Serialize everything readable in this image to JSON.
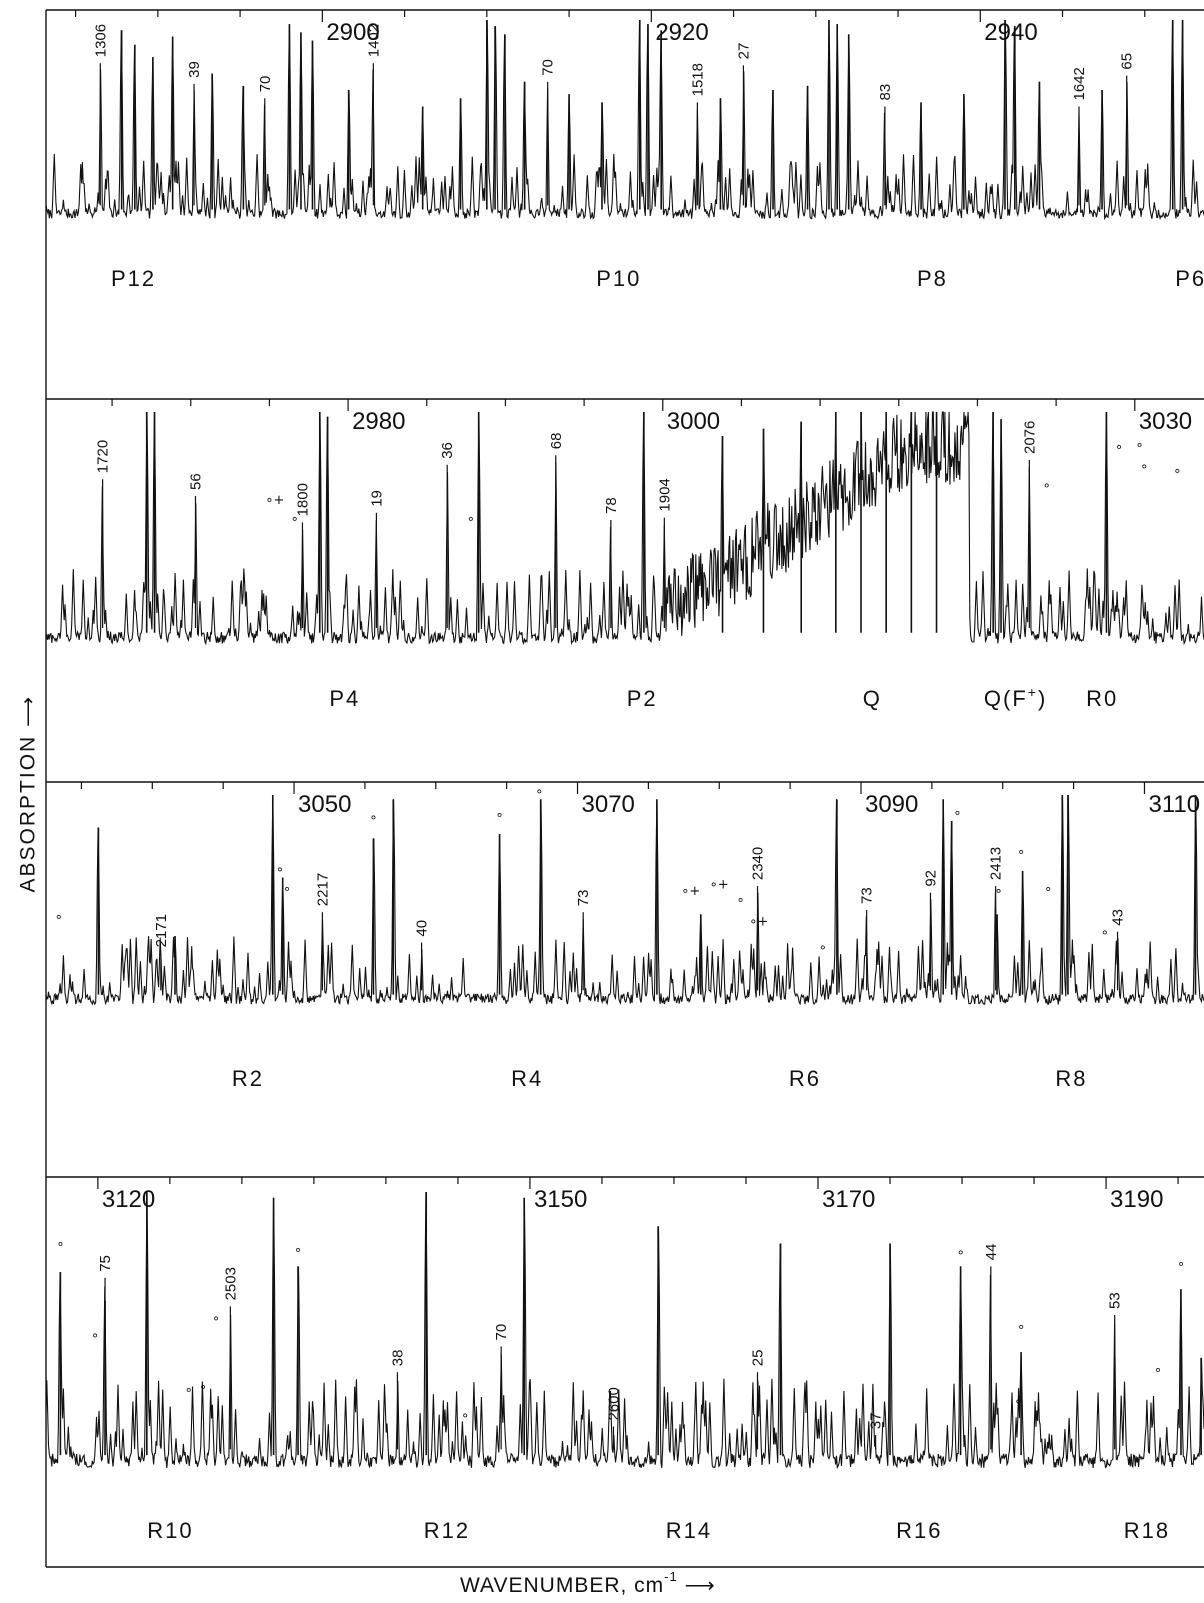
{
  "axes": {
    "ylabel": "ABSORPTION ⟶",
    "xlabel": "WAVENUMBER, cm",
    "xlabel_superscript": "-1",
    "xlabel_arrow": "⟶"
  },
  "chart_data": [
    {
      "type": "line",
      "panel": 1,
      "title": "",
      "xlabel": "",
      "ylabel": "",
      "xlim": [
        2883.2,
        2953.6
      ],
      "major_ticks": [
        2900,
        2920,
        2940
      ],
      "branch_labels": [
        {
          "text": "P12",
          "x": 2888
        },
        {
          "text": "P10",
          "x": 2917.5
        },
        {
          "text": "P8",
          "x": 2937
        },
        {
          "text": "P6",
          "x": 2952.7
        }
      ],
      "peak_annotations": [
        {
          "text": "1306",
          "x": 2886.5,
          "y": 0.79
        },
        {
          "text": "39",
          "x": 2892.2,
          "y": 0.69
        },
        {
          "text": "70",
          "x": 2896.5,
          "y": 0.62
        },
        {
          "text": "1402",
          "x": 2903.1,
          "y": 0.79
        },
        {
          "text": "70",
          "x": 2913.7,
          "y": 0.7
        },
        {
          "text": "1518",
          "x": 2922.8,
          "y": 0.6
        },
        {
          "text": "27",
          "x": 2925.6,
          "y": 0.78
        },
        {
          "text": "83",
          "x": 2934.2,
          "y": 0.58
        },
        {
          "text": "1642",
          "x": 2946.0,
          "y": 0.58
        },
        {
          "text": "65",
          "x": 2948.9,
          "y": 0.73
        }
      ],
      "strong_lines": [
        {
          "x": 2887.8,
          "y": 0.95
        },
        {
          "x": 2888.6,
          "y": 0.88
        },
        {
          "x": 2889.7,
          "y": 0.82
        },
        {
          "x": 2890.9,
          "y": 0.92
        },
        {
          "x": 2893.3,
          "y": 0.74
        },
        {
          "x": 2895.2,
          "y": 0.68
        },
        {
          "x": 2898.0,
          "y": 0.98
        },
        {
          "x": 2898.7,
          "y": 0.94
        },
        {
          "x": 2899.4,
          "y": 0.9
        },
        {
          "x": 2901.6,
          "y": 0.66
        },
        {
          "x": 2906.1,
          "y": 0.58
        },
        {
          "x": 2908.4,
          "y": 0.62
        },
        {
          "x": 2910.0,
          "y": 1.0
        },
        {
          "x": 2910.5,
          "y": 0.97
        },
        {
          "x": 2911.1,
          "y": 0.93
        },
        {
          "x": 2912.3,
          "y": 0.7
        },
        {
          "x": 2915.0,
          "y": 0.64
        },
        {
          "x": 2917.0,
          "y": 0.6
        },
        {
          "x": 2919.3,
          "y": 1.0
        },
        {
          "x": 2919.8,
          "y": 0.98
        },
        {
          "x": 2920.6,
          "y": 0.95
        },
        {
          "x": 2924.2,
          "y": 0.62
        },
        {
          "x": 2927.4,
          "y": 0.66
        },
        {
          "x": 2929.5,
          "y": 0.68
        },
        {
          "x": 2930.8,
          "y": 1.0
        },
        {
          "x": 2931.3,
          "y": 0.98
        },
        {
          "x": 2932.0,
          "y": 0.93
        },
        {
          "x": 2936.4,
          "y": 0.6
        },
        {
          "x": 2939.0,
          "y": 0.64
        },
        {
          "x": 2941.5,
          "y": 1.0
        },
        {
          "x": 2942.1,
          "y": 0.97
        },
        {
          "x": 2943.6,
          "y": 0.7
        },
        {
          "x": 2947.4,
          "y": 0.66
        },
        {
          "x": 2951.7,
          "y": 1.0
        },
        {
          "x": 2952.3,
          "y": 1.0
        }
      ]
    },
    {
      "type": "line",
      "panel": 2,
      "title": "",
      "xlabel": "",
      "ylabel": "",
      "xlim": [
        2960.8,
        3034.4
      ],
      "major_ticks": [
        2980,
        3000,
        3030
      ],
      "branch_labels": [
        {
          "text": "P4",
          "x": 2979.7
        },
        {
          "text": "P2",
          "x": 2998.6
        },
        {
          "text": "Q",
          "x": 3013.6
        },
        {
          "text": "Q(F",
          "x": 3021.3,
          "superscript": "+",
          "suffix": ")"
        },
        {
          "text": "R0",
          "x": 3027.8
        }
      ],
      "peak_annotations": [
        {
          "text": "1720",
          "x": 2964.4,
          "y": 0.72
        },
        {
          "text": "56",
          "x": 2970.3,
          "y": 0.65
        },
        {
          "text": "1800",
          "x": 2977.1,
          "y": 0.54
        },
        {
          "text": "19",
          "x": 2981.8,
          "y": 0.58
        },
        {
          "text": "36",
          "x": 2986.3,
          "y": 0.78
        },
        {
          "text": "68",
          "x": 2993.2,
          "y": 0.82
        },
        {
          "text": "78",
          "x": 2996.7,
          "y": 0.55
        },
        {
          "text": "1904",
          "x": 3000.1,
          "y": 0.56
        },
        {
          "text": "2076",
          "x": 3023.3,
          "y": 0.8
        }
      ],
      "marker_notes": [
        {
          "text": "∘+",
          "x": 2975.0,
          "y": 0.6
        },
        {
          "text": "∘",
          "x": 2976.6,
          "y": 0.52
        },
        {
          "text": "∘",
          "x": 2987.8,
          "y": 0.52
        },
        {
          "text": "∘",
          "x": 3024.4,
          "y": 0.66
        },
        {
          "text": "∘",
          "x": 3029.0,
          "y": 0.82
        },
        {
          "text": "∘",
          "x": 3030.3,
          "y": 0.83
        },
        {
          "text": "∘",
          "x": 3030.6,
          "y": 0.74
        },
        {
          "text": "∘",
          "x": 3032.7,
          "y": 0.72
        }
      ],
      "strong_lines": [
        {
          "x": 2967.2,
          "y": 1.0
        },
        {
          "x": 2967.7,
          "y": 1.0
        },
        {
          "x": 2978.2,
          "y": 1.0
        },
        {
          "x": 2978.7,
          "y": 0.98
        },
        {
          "x": 2988.3,
          "y": 1.0
        },
        {
          "x": 2998.8,
          "y": 1.0
        },
        {
          "x": 3003.8,
          "y": 0.9
        },
        {
          "x": 3006.4,
          "y": 0.93
        },
        {
          "x": 3008.8,
          "y": 0.96
        },
        {
          "x": 3011.0,
          "y": 1.0
        },
        {
          "x": 3012.6,
          "y": 1.0
        },
        {
          "x": 3014.2,
          "y": 1.0
        },
        {
          "x": 3015.8,
          "y": 1.0
        },
        {
          "x": 3017.4,
          "y": 1.0
        },
        {
          "x": 3021.0,
          "y": 1.0
        },
        {
          "x": 3021.5,
          "y": 0.97
        },
        {
          "x": 3028.2,
          "y": 1.0
        }
      ]
    },
    {
      "type": "line",
      "panel": 3,
      "title": "",
      "xlabel": "",
      "ylabel": "",
      "xlim": [
        3032.5,
        3114.2
      ],
      "major_ticks": [
        3050,
        3070,
        3090,
        3110
      ],
      "branch_labels": [
        {
          "text": "R2",
          "x": 3046.6
        },
        {
          "text": "R4",
          "x": 3066.3
        },
        {
          "text": "R6",
          "x": 3085.9
        },
        {
          "text": "R8",
          "x": 3104.7
        }
      ],
      "peak_annotations": [
        {
          "text": "2171",
          "x": 3040.6,
          "y": 0.27
        },
        {
          "text": "2217",
          "x": 3052.0,
          "y": 0.46
        },
        {
          "text": "40",
          "x": 3059.0,
          "y": 0.32
        },
        {
          "text": "73",
          "x": 3070.4,
          "y": 0.46
        },
        {
          "text": "2340",
          "x": 3082.7,
          "y": 0.58
        },
        {
          "text": "73",
          "x": 3090.4,
          "y": 0.47
        },
        {
          "text": "92",
          "x": 3094.9,
          "y": 0.55
        },
        {
          "text": "2413",
          "x": 3099.5,
          "y": 0.58
        },
        {
          "text": "43",
          "x": 3108.1,
          "y": 0.37
        }
      ],
      "marker_notes": [
        {
          "text": "∘",
          "x": 3033.4,
          "y": 0.4
        },
        {
          "text": "∘",
          "x": 3049.0,
          "y": 0.62
        },
        {
          "text": "∘",
          "x": 3049.5,
          "y": 0.53
        },
        {
          "text": "∘",
          "x": 3055.6,
          "y": 0.86
        },
        {
          "text": "∘",
          "x": 3064.5,
          "y": 0.87
        },
        {
          "text": "∘",
          "x": 3067.3,
          "y": 0.98
        },
        {
          "text": "∘+",
          "x": 3077.6,
          "y": 0.52
        },
        {
          "text": "∘+",
          "x": 3079.6,
          "y": 0.55
        },
        {
          "text": "∘",
          "x": 3081.5,
          "y": 0.48
        },
        {
          "text": "∘+",
          "x": 3082.4,
          "y": 0.38
        },
        {
          "text": "∘",
          "x": 3087.3,
          "y": 0.26
        },
        {
          "text": "∘",
          "x": 3096.8,
          "y": 0.88
        },
        {
          "text": "∘",
          "x": 3099.7,
          "y": 0.52
        },
        {
          "text": "∘",
          "x": 3101.3,
          "y": 0.7
        },
        {
          "text": "∘",
          "x": 3103.2,
          "y": 0.53
        },
        {
          "text": "∘",
          "x": 3107.2,
          "y": 0.33
        }
      ],
      "strong_lines": [
        {
          "x": 3036.2,
          "y": 0.85
        },
        {
          "x": 3041.6,
          "y": 0.35
        },
        {
          "x": 3048.5,
          "y": 1.0
        },
        {
          "x": 3049.2,
          "y": 0.62
        },
        {
          "x": 3055.6,
          "y": 0.8
        },
        {
          "x": 3057.0,
          "y": 0.98
        },
        {
          "x": 3064.5,
          "y": 0.82
        },
        {
          "x": 3067.4,
          "y": 0.98
        },
        {
          "x": 3075.6,
          "y": 0.98
        },
        {
          "x": 3078.7,
          "y": 0.45
        },
        {
          "x": 3088.3,
          "y": 0.98
        },
        {
          "x": 3095.8,
          "y": 0.98
        },
        {
          "x": 3096.4,
          "y": 0.88
        },
        {
          "x": 3099.6,
          "y": 0.45
        },
        {
          "x": 3101.4,
          "y": 0.65
        },
        {
          "x": 3104.2,
          "y": 1.0
        },
        {
          "x": 3104.6,
          "y": 1.0
        },
        {
          "x": 3113.6,
          "y": 1.0
        }
      ]
    },
    {
      "type": "line",
      "panel": 4,
      "title": "",
      "xlabel": "",
      "ylabel": "",
      "xlim": [
        3116.4,
        3196.8
      ],
      "major_ticks": [
        3120,
        3150,
        3170,
        3190
      ],
      "branch_labels": [
        {
          "text": "R10",
          "x": 3124.4
        },
        {
          "text": "R12",
          "x": 3143.6
        },
        {
          "text": "R14",
          "x": 3160.4
        },
        {
          "text": "R16",
          "x": 3176.4
        },
        {
          "text": "R18",
          "x": 3192.2
        }
      ],
      "peak_annotations": [
        {
          "text": "75",
          "x": 3120.5,
          "y": 0.7
        },
        {
          "text": "2503",
          "x": 3129.2,
          "y": 0.6
        },
        {
          "text": "38",
          "x": 3140.8,
          "y": 0.37
        },
        {
          "text": "70",
          "x": 3148.0,
          "y": 0.46
        },
        {
          "text": "2600",
          "x": 3155.8,
          "y": 0.18
        },
        {
          "text": "25",
          "x": 3165.8,
          "y": 0.37
        },
        {
          "text": "37",
          "x": 3174.0,
          "y": 0.15
        },
        {
          "text": "44",
          "x": 3182.0,
          "y": 0.74
        },
        {
          "text": "53",
          "x": 3190.6,
          "y": 0.57
        }
      ],
      "marker_notes": [
        {
          "text": "∘",
          "x": 3117.4,
          "y": 0.79
        },
        {
          "text": "∘",
          "x": 3119.8,
          "y": 0.47
        },
        {
          "text": "∘",
          "x": 3126.3,
          "y": 0.28
        },
        {
          "text": "∘",
          "x": 3127.3,
          "y": 0.29
        },
        {
          "text": "∘",
          "x": 3128.2,
          "y": 0.53
        },
        {
          "text": "∘",
          "x": 3133.9,
          "y": 0.77
        },
        {
          "text": "∘",
          "x": 3145.5,
          "y": 0.19
        },
        {
          "text": "∘",
          "x": 3179.9,
          "y": 0.76
        },
        {
          "text": "∘",
          "x": 3184.1,
          "y": 0.5
        },
        {
          "text": "∘",
          "x": 3183.9,
          "y": 0.24
        },
        {
          "text": "∘",
          "x": 3193.6,
          "y": 0.35
        },
        {
          "text": "∘",
          "x": 3195.2,
          "y": 0.72
        }
      ],
      "strong_lines": [
        {
          "x": 3117.4,
          "y": 0.72
        },
        {
          "x": 3120.5,
          "y": 0.62
        },
        {
          "x": 3123.4,
          "y": 1.0
        },
        {
          "x": 3132.2,
          "y": 0.98
        },
        {
          "x": 3133.9,
          "y": 0.74
        },
        {
          "x": 3142.8,
          "y": 1.0
        },
        {
          "x": 3149.6,
          "y": 0.98
        },
        {
          "x": 3158.9,
          "y": 0.88
        },
        {
          "x": 3167.4,
          "y": 0.82
        },
        {
          "x": 3175.0,
          "y": 0.82
        },
        {
          "x": 3179.9,
          "y": 0.74
        },
        {
          "x": 3184.1,
          "y": 0.44
        },
        {
          "x": 3195.2,
          "y": 0.66
        },
        {
          "x": 3196.6,
          "y": 0.42
        }
      ]
    }
  ],
  "colors": {
    "ink": "#111111",
    "background": "#ffffff"
  }
}
